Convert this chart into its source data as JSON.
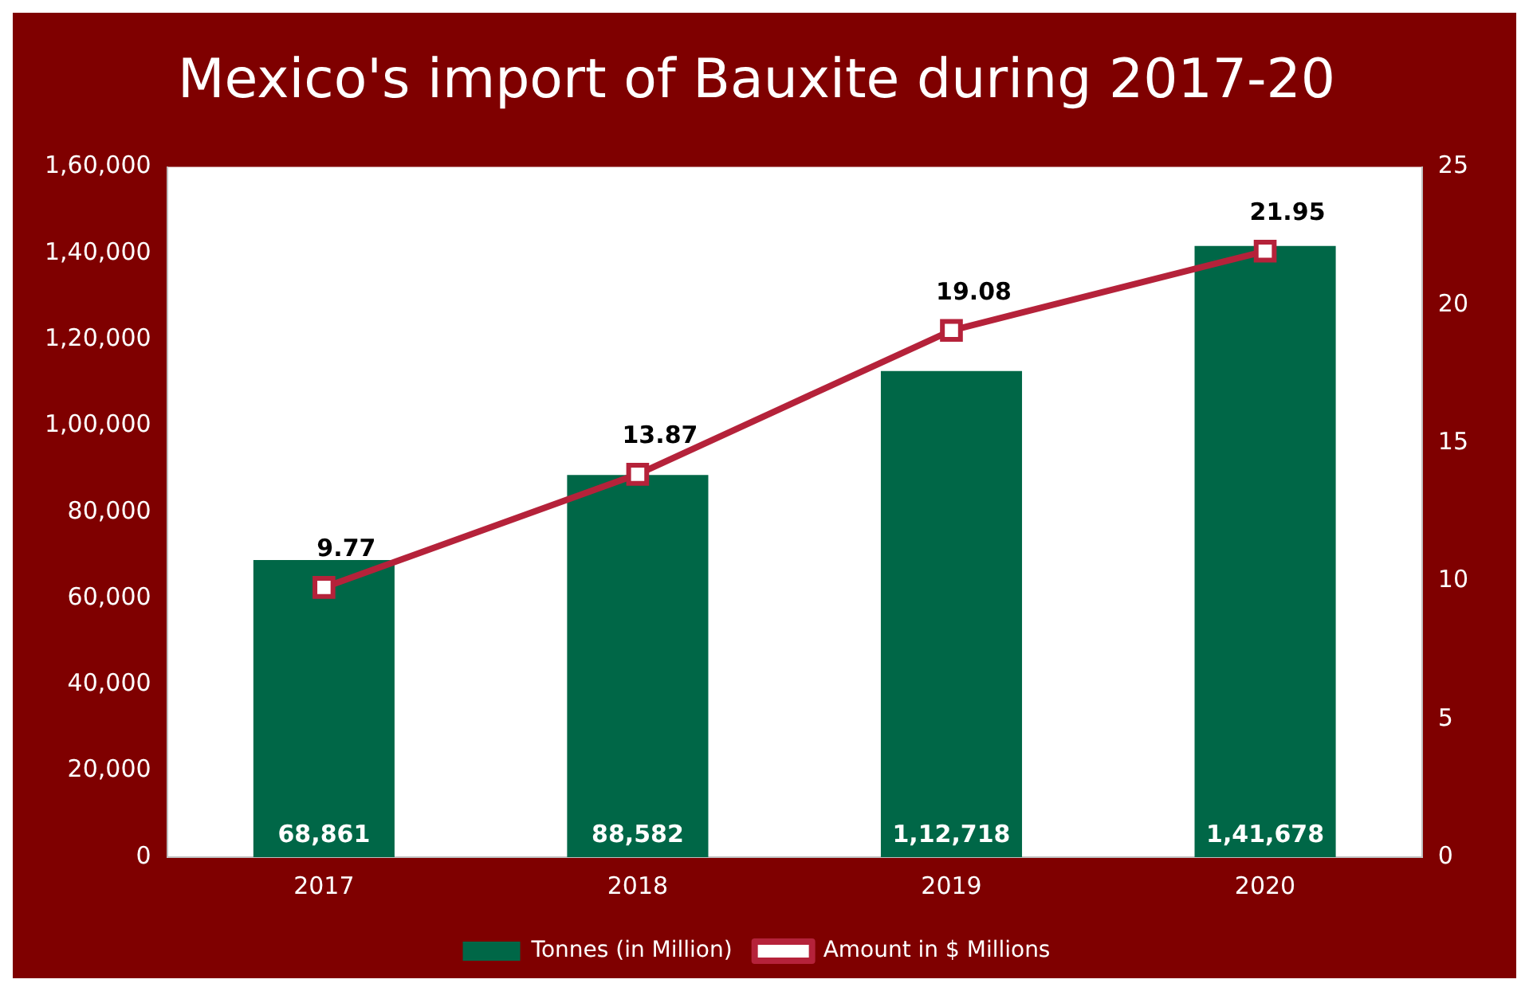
{
  "chart_data": {
    "type": "bar",
    "title": "Mexico's import of Bauxite during 2017-20",
    "categories": [
      "2017",
      "2018",
      "2019",
      "2020"
    ],
    "series": [
      {
        "name": "Tonnes (in Million)",
        "color": "#006747",
        "values": [
          68861,
          88582,
          112718,
          141678
        ],
        "value_labels": [
          "68,861",
          "88,582",
          "1,12,718",
          "1,41,678"
        ]
      },
      {
        "name": "Amount in $ Millions",
        "type": "line",
        "axis": "y2",
        "color": "#b5223a",
        "marker": "square",
        "values": [
          9.77,
          13.87,
          19.08,
          21.95
        ],
        "value_labels": [
          "9.77",
          "13.87",
          "19.08",
          "21.95"
        ]
      }
    ],
    "ylim": [
      0,
      160000
    ],
    "yticks": [
      0,
      {
        "value": 20000,
        "label": "20,000"
      },
      {
        "value": 40000,
        "label": "40,000"
      },
      {
        "value": 60000,
        "label": "60,000"
      },
      {
        "value": 80000,
        "label": "80,000"
      },
      {
        "value": 100000,
        "label": "1,00,000"
      },
      {
        "value": 120000,
        "label": "1,20,000"
      },
      {
        "value": 140000,
        "label": "1,40,000"
      },
      {
        "value": 160000,
        "label": "1,60,000"
      }
    ],
    "y2lim": [
      0,
      25
    ],
    "y2ticks": [
      0,
      5,
      10,
      15,
      20,
      25
    ],
    "grid": false,
    "legend": "bottom"
  }
}
